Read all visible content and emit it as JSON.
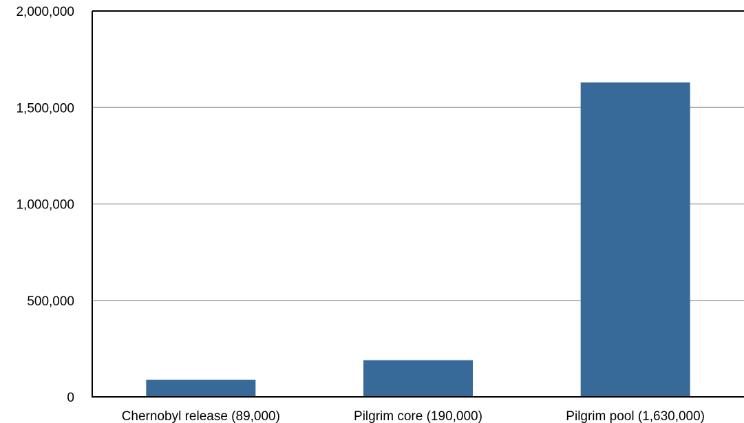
{
  "chart_data": {
    "type": "bar",
    "title": "",
    "xlabel": "",
    "ylabel": "",
    "categories": [
      "Chernobyl release (89,000)",
      "Pilgrim core (190,000)",
      "Pilgrim pool (1,630,000)"
    ],
    "values": [
      89000,
      190000,
      1630000
    ],
    "ylim": [
      0,
      2000000
    ],
    "yticks": [
      0,
      500000,
      1000000,
      1500000,
      2000000
    ],
    "ytick_labels": [
      "0",
      "500,000",
      "1,000,000",
      "1,500,000",
      "2,000,000"
    ],
    "grid": true,
    "legend": "none",
    "bar_color": "#386a99"
  }
}
